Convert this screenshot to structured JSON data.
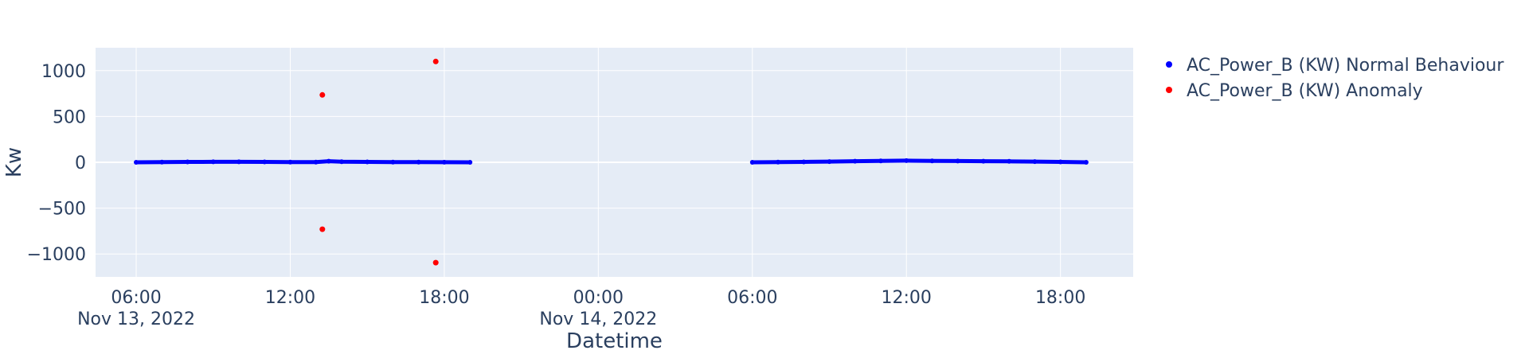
{
  "chart_data": {
    "type": "scatter",
    "title": "",
    "xlabel": "Datetime",
    "ylabel": "Kw",
    "xlim": [
      "2022-11-13 04:25",
      "2022-11-14 20:50"
    ],
    "ylim": [
      -1250,
      1250
    ],
    "grid": true,
    "legend_position": "top-right",
    "x_ticks": [
      {
        "value": "2022-11-13 06:00",
        "label": "06:00",
        "sublabel": "Nov 13, 2022"
      },
      {
        "value": "2022-11-13 12:00",
        "label": "12:00",
        "sublabel": ""
      },
      {
        "value": "2022-11-13 18:00",
        "label": "18:00",
        "sublabel": ""
      },
      {
        "value": "2022-11-14 00:00",
        "label": "00:00",
        "sublabel": "Nov 14, 2022"
      },
      {
        "value": "2022-11-14 06:00",
        "label": "06:00",
        "sublabel": ""
      },
      {
        "value": "2022-11-14 12:00",
        "label": "12:00",
        "sublabel": ""
      },
      {
        "value": "2022-11-14 18:00",
        "label": "18:00",
        "sublabel": ""
      }
    ],
    "y_ticks": [
      {
        "value": 1000,
        "label": "1000"
      },
      {
        "value": 500,
        "label": "500"
      },
      {
        "value": 0,
        "label": "0"
      },
      {
        "value": -500,
        "label": "−500"
      },
      {
        "value": -1000,
        "label": "−1000"
      }
    ],
    "series": [
      {
        "name": "AC_Power_B (KW) Normal Behaviour",
        "color": "#0000ff",
        "mode": "dense-band",
        "segments": [
          {
            "points": [
              [
                "2022-11-13 06:00",
                0
              ],
              [
                "2022-11-13 07:00",
                2
              ],
              [
                "2022-11-13 08:00",
                4
              ],
              [
                "2022-11-13 09:00",
                5
              ],
              [
                "2022-11-13 10:00",
                5
              ],
              [
                "2022-11-13 11:00",
                4
              ],
              [
                "2022-11-13 12:00",
                2
              ],
              [
                "2022-11-13 13:00",
                2
              ],
              [
                "2022-11-13 13:30",
                12
              ],
              [
                "2022-11-13 14:00",
                6
              ],
              [
                "2022-11-13 15:00",
                4
              ],
              [
                "2022-11-13 16:00",
                3
              ],
              [
                "2022-11-13 17:00",
                2
              ],
              [
                "2022-11-13 18:00",
                1
              ],
              [
                "2022-11-13 19:00",
                0
              ]
            ]
          },
          {
            "points": [
              [
                "2022-11-14 06:00",
                0
              ],
              [
                "2022-11-14 07:00",
                2
              ],
              [
                "2022-11-14 08:00",
                4
              ],
              [
                "2022-11-14 09:00",
                8
              ],
              [
                "2022-11-14 10:00",
                12
              ],
              [
                "2022-11-14 11:00",
                16
              ],
              [
                "2022-11-14 12:00",
                18
              ],
              [
                "2022-11-14 13:00",
                15
              ],
              [
                "2022-11-14 14:00",
                14
              ],
              [
                "2022-11-14 15:00",
                12
              ],
              [
                "2022-11-14 16:00",
                10
              ],
              [
                "2022-11-14 17:00",
                8
              ],
              [
                "2022-11-14 18:00",
                4
              ],
              [
                "2022-11-14 19:00",
                0
              ]
            ]
          }
        ]
      },
      {
        "name": "AC_Power_B (KW) Anomaly",
        "color": "#ff0000",
        "mode": "markers",
        "points": [
          [
            "2022-11-13 13:15",
            735
          ],
          [
            "2022-11-13 13:15",
            -730
          ],
          [
            "2022-11-13 17:40",
            1100
          ],
          [
            "2022-11-13 17:40",
            -1095
          ]
        ]
      }
    ]
  }
}
